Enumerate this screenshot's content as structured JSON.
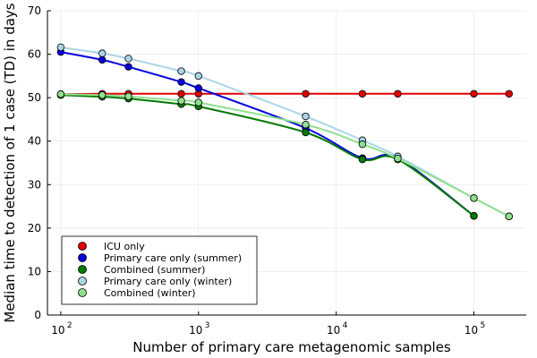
{
  "chart_data": {
    "type": "line",
    "xlabel": "Number of primary care metagenomic samples",
    "ylabel": "Median time to detection of 1 case (TD) in days",
    "xscale": "log",
    "xlim": [
      80,
      240000
    ],
    "ylim": [
      0,
      70
    ],
    "yticks": [
      0,
      10,
      20,
      30,
      40,
      50,
      60,
      70
    ],
    "xticks": [
      {
        "value": 100,
        "base": "10",
        "exp": "2"
      },
      {
        "value": 1000,
        "base": "10",
        "exp": "3"
      },
      {
        "value": 10000,
        "base": "10",
        "exp": "4"
      },
      {
        "value": 100000,
        "base": "10",
        "exp": "5"
      }
    ],
    "grid": true,
    "legend_position": "bottom-left",
    "series": [
      {
        "name": "ICU only",
        "color": "#e00000",
        "x": [
          100,
          200,
          310,
          750,
          1000,
          6000,
          15500,
          28000,
          100000,
          180000
        ],
        "y": [
          50.8,
          50.9,
          50.9,
          50.9,
          50.9,
          50.9,
          50.9,
          50.9,
          50.9,
          50.9
        ]
      },
      {
        "name": "Primary care only (summer)",
        "color": "#0000e0",
        "x": [
          100,
          200,
          310,
          750,
          1000,
          6000,
          15500,
          28000,
          100000
        ],
        "y": [
          60.5,
          58.7,
          57.1,
          53.6,
          52.2,
          43.0,
          36.1,
          36.1,
          22.8
        ]
      },
      {
        "name": "Combined (summer)",
        "color": "#007a00",
        "x": [
          100,
          200,
          310,
          750,
          1000,
          6000,
          15500,
          28000,
          100000
        ],
        "y": [
          50.6,
          50.2,
          49.8,
          48.5,
          48.0,
          42.0,
          35.8,
          35.8,
          22.8
        ]
      },
      {
        "name": "Primary care only (winter)",
        "color": "#aad6e8",
        "x": [
          100,
          200,
          310,
          750,
          1000,
          6000,
          15500,
          28000,
          100000,
          180000
        ],
        "y": [
          61.6,
          60.2,
          59.0,
          56.1,
          55.0,
          45.7,
          40.2,
          36.5,
          26.9,
          22.7
        ]
      },
      {
        "name": "Combined (winter)",
        "color": "#8fe08f",
        "x": [
          100,
          200,
          310,
          750,
          1000,
          6000,
          15500,
          28000,
          100000,
          180000
        ],
        "y": [
          50.8,
          50.6,
          50.3,
          49.3,
          48.9,
          43.8,
          39.3,
          36.0,
          26.9,
          22.7
        ]
      }
    ]
  }
}
